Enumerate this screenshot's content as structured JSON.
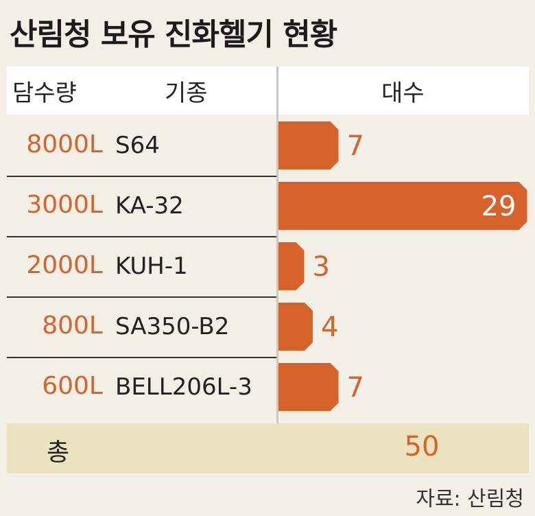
{
  "title": "산림청 보유 진화헬기 현황",
  "headers": {
    "capacity": "담수량",
    "model": "기종",
    "count": "대수"
  },
  "rows": [
    {
      "capacity": "8000L",
      "model": "S64",
      "count": "7"
    },
    {
      "capacity": "3000L",
      "model": "KA-32",
      "count": "29"
    },
    {
      "capacity": "2000L",
      "model": "KUH-1",
      "count": "3"
    },
    {
      "capacity": "800L",
      "model": "SA350-B2",
      "count": "4"
    },
    {
      "capacity": "600L",
      "model": "BELL206L-3",
      "count": "7"
    }
  ],
  "total": {
    "label": "총",
    "value": "50"
  },
  "source": "자료: 산림청",
  "colors": {
    "accent": "#d8632a",
    "total_bg": "#ebe3bf",
    "background": "#f1efe6"
  },
  "chart_data": {
    "type": "bar",
    "orientation": "horizontal",
    "categories": [
      "S64",
      "KA-32",
      "KUH-1",
      "SA350-B2",
      "BELL206L-3"
    ],
    "values": [
      7,
      29,
      3,
      4,
      7
    ],
    "title": "산림청 보유 진화헬기 현황"
  }
}
